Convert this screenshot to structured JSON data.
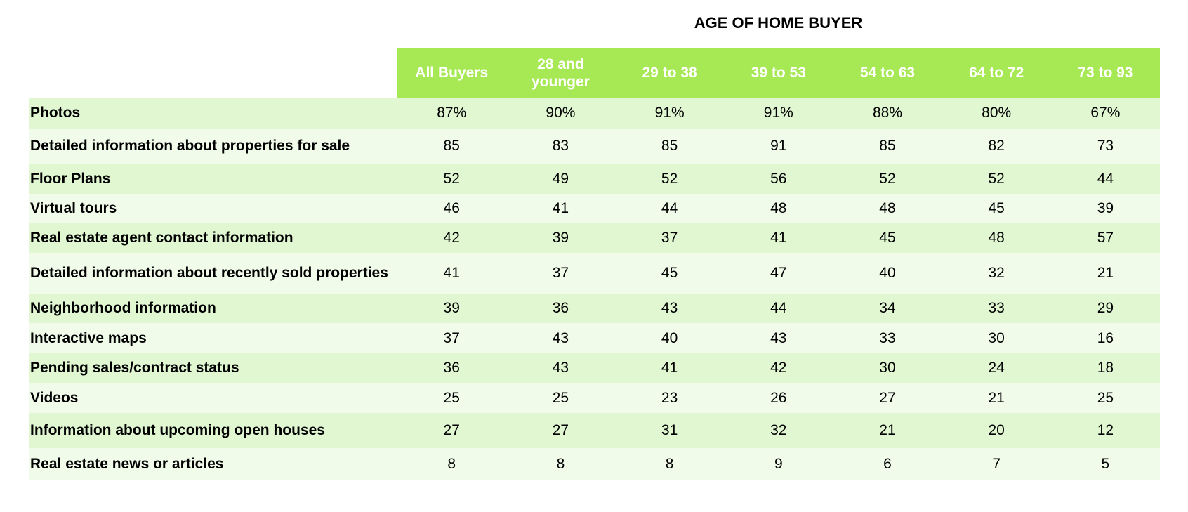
{
  "super_title": "AGE OF HOME BUYER",
  "columns": [
    "All Buyers",
    "28 and younger",
    "29 to 38",
    "39 to 53",
    "54 to 63",
    "64 to 72",
    "73 to 93"
  ],
  "rows": [
    {
      "label": "Photos",
      "values": [
        "87%",
        "90%",
        "91%",
        "91%",
        "88%",
        "80%",
        "67%"
      ]
    },
    {
      "label": "Detailed information about properties for sale",
      "values": [
        "85",
        "83",
        "85",
        "91",
        "85",
        "82",
        "73"
      ]
    },
    {
      "label": "Floor Plans",
      "values": [
        "52",
        "49",
        "52",
        "56",
        "52",
        "52",
        "44"
      ]
    },
    {
      "label": "Virtual tours",
      "values": [
        "46",
        "41",
        "44",
        "48",
        "48",
        "45",
        "39"
      ]
    },
    {
      "label": "Real estate agent contact information",
      "values": [
        "42",
        "39",
        "37",
        "41",
        "45",
        "48",
        "57"
      ]
    },
    {
      "label": "Detailed information about recently sold properties",
      "values": [
        "41",
        "37",
        "45",
        "47",
        "40",
        "32",
        "21"
      ]
    },
    {
      "label": "Neighborhood information",
      "values": [
        "39",
        "36",
        "43",
        "44",
        "34",
        "33",
        "29"
      ]
    },
    {
      "label": "Interactive maps",
      "values": [
        "37",
        "43",
        "40",
        "43",
        "33",
        "30",
        "16"
      ]
    },
    {
      "label": "Pending sales/contract status",
      "values": [
        "36",
        "43",
        "41",
        "42",
        "30",
        "24",
        "18"
      ]
    },
    {
      "label": "Videos",
      "values": [
        "25",
        "25",
        "23",
        "26",
        "27",
        "21",
        "25"
      ]
    },
    {
      "label": "Information about upcoming open houses",
      "values": [
        "27",
        "27",
        "31",
        "32",
        "21",
        "20",
        "12"
      ]
    },
    {
      "label": "Real estate news or articles",
      "values": [
        "8",
        "8",
        "8",
        "9",
        "6",
        "7",
        "5"
      ]
    }
  ],
  "colors": {
    "header": "#a7e855",
    "row_odd": "#e0f7d2",
    "row_even": "#f0fbea"
  }
}
